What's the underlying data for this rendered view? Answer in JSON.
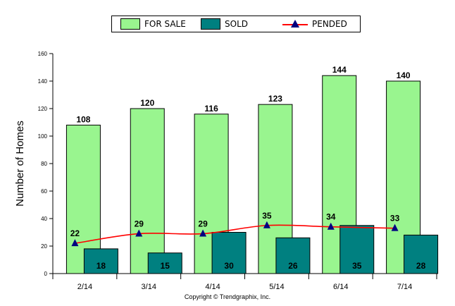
{
  "chart_data": {
    "type": "bar",
    "categories": [
      "2/14",
      "3/14",
      "4/14",
      "5/14",
      "6/14",
      "7/14"
    ],
    "series": [
      {
        "name": "FOR SALE",
        "type": "bar",
        "color": "#99f58f",
        "values": [
          108,
          120,
          116,
          123,
          144,
          140
        ]
      },
      {
        "name": "SOLD",
        "type": "bar",
        "color": "#008080",
        "values": [
          18,
          15,
          30,
          26,
          35,
          28
        ]
      },
      {
        "name": "PENDED",
        "type": "line",
        "color": "#ff0000",
        "marker_color": "#000080",
        "values": [
          22,
          29,
          29,
          35,
          34,
          33
        ]
      }
    ],
    "ylabel": "Number of Homes",
    "xlabel": "",
    "ylim": [
      0,
      160
    ],
    "yticks": [
      0,
      20,
      40,
      60,
      80,
      100,
      120,
      140,
      160
    ],
    "grid": false,
    "legend_position": "top"
  },
  "legend": {
    "for_sale": "FOR SALE",
    "sold": "SOLD",
    "pended": "PENDED"
  },
  "footer": {
    "copyright": "Copyright © Trendgraphix, Inc."
  }
}
